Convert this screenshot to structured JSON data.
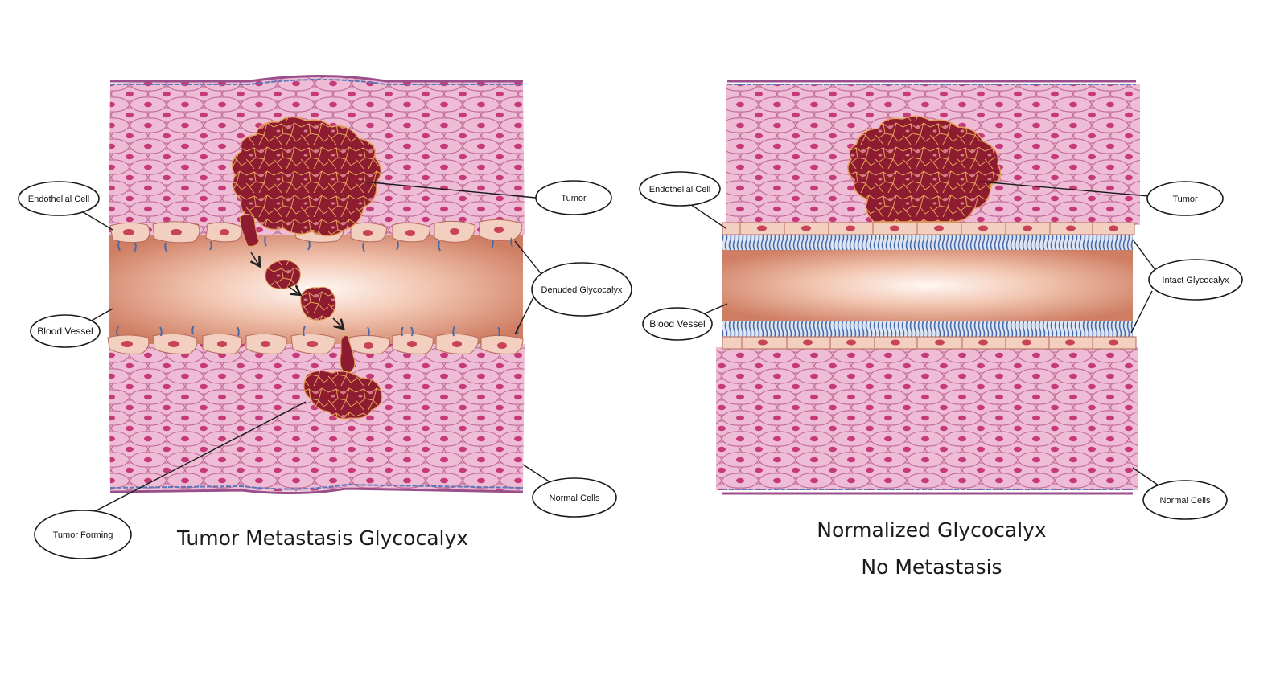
{
  "colors": {
    "tissue": "#eab0cc",
    "cell_outline": "#c06a98",
    "nucleus": "#c63a7a",
    "vessel_center": "#fff6f2",
    "vessel_edge": "#d6876d",
    "endothelial": "#f3cfc0",
    "endothelial_nucleus": "#c84455",
    "tumor": "#8e1c30",
    "tumor_line": "#e6a25c",
    "glycocalyx": "#4a6aa6",
    "membrane": "#9b4f8a"
  },
  "left_panel": {
    "title": "Tumor Metastasis Glycocalyx",
    "labels": {
      "endothelial_cell": "Endothelial Cell",
      "blood_vessel": "Blood Vessel",
      "tumor": "Tumor",
      "denuded_glycocalyx": "Denuded Glycocalyx",
      "normal_cells": "Normal Cells",
      "tumor_forming": "Tumor Forming"
    }
  },
  "right_panel": {
    "title_line1": "Normalized Glycocalyx",
    "title_line2": "No Metastasis",
    "labels": {
      "endothelial_cell": "Endothelial Cell",
      "blood_vessel": "Blood Vessel",
      "tumor": "Tumor",
      "intact_glycocalyx": "Intact Glycocalyx",
      "normal_cells": "Normal Cells"
    }
  }
}
